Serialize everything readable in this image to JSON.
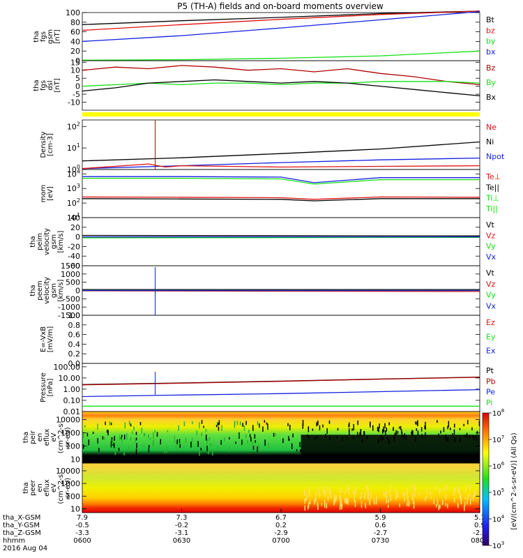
{
  "title": "P5 (TH-A) fields and on-board moments overview",
  "colors": {
    "black": "#000000",
    "red": "#e01010",
    "green": "#10e010",
    "blue": "#1020e0",
    "darkred": "#b00000",
    "yellow": "#ffff00"
  },
  "chart_data": [
    {
      "type": "line",
      "id": "fgs_mag",
      "ylabel": [
        "tha",
        "fgs",
        "gsm",
        "[nT]"
      ],
      "ylim": [
        0,
        100
      ],
      "yticks": [
        0,
        20,
        40,
        60,
        80,
        100
      ],
      "legend": [
        {
          "name": "Bt",
          "color": "black"
        },
        {
          "name": "bz",
          "color": "red"
        },
        {
          "name": "by",
          "color": "green"
        },
        {
          "name": "bx",
          "color": "blue"
        }
      ],
      "series": [
        {
          "name": "Bt",
          "color": "black",
          "x": [
            0,
            30,
            60,
            90,
            120
          ],
          "y": [
            75,
            83,
            90,
            98,
            103
          ]
        },
        {
          "name": "bz",
          "color": "red",
          "x": [
            0,
            30,
            60,
            90,
            120
          ],
          "y": [
            63,
            75,
            86,
            96,
            103
          ]
        },
        {
          "name": "by",
          "color": "green",
          "x": [
            0,
            30,
            60,
            90,
            120
          ],
          "y": [
            1,
            2,
            5,
            10,
            20
          ]
        },
        {
          "name": "bx",
          "color": "blue",
          "x": [
            0,
            30,
            60,
            90,
            120
          ],
          "y": [
            40,
            52,
            68,
            85,
            102
          ]
        }
      ]
    },
    {
      "type": "line",
      "id": "fgs_comp",
      "ylabel": [
        "tha",
        "fgs",
        "dsl",
        "[nT]"
      ],
      "ylim": [
        -15,
        16
      ],
      "yticks": [
        -10,
        -5,
        0,
        5,
        10,
        15
      ],
      "legend": [
        {
          "name": "Bz",
          "color": "darkred"
        },
        {
          "name": "By",
          "color": "green"
        },
        {
          "name": "Bx",
          "color": "black"
        }
      ],
      "series": [
        {
          "name": "Bz",
          "color": "darkred",
          "x": [
            0,
            10,
            20,
            30,
            40,
            50,
            60,
            70,
            80,
            90,
            100,
            110,
            120
          ],
          "y": [
            10,
            12,
            11,
            13,
            12,
            10,
            11,
            9,
            11,
            8,
            6,
            3,
            1
          ]
        },
        {
          "name": "By",
          "color": "green",
          "x": [
            0,
            10,
            20,
            30,
            40,
            50,
            60,
            70,
            80,
            90,
            100,
            110,
            120
          ],
          "y": [
            0,
            1,
            2,
            1,
            2,
            2,
            1,
            2,
            2,
            3,
            3,
            3,
            2
          ]
        },
        {
          "name": "Bx",
          "color": "black",
          "x": [
            0,
            10,
            20,
            30,
            40,
            50,
            60,
            70,
            80,
            90,
            100,
            110,
            120
          ],
          "y": [
            -3,
            -1,
            2,
            3,
            4,
            3,
            2,
            3,
            2,
            0,
            -2,
            -4,
            -6
          ]
        }
      ]
    },
    {
      "type": "line",
      "id": "density",
      "ylabel": [
        "Density",
        "[cm-3]"
      ],
      "scale": "log",
      "ylim": [
        1,
        200
      ],
      "yticks": [
        1,
        10,
        100
      ],
      "legend": [
        {
          "name": "Ne",
          "color": "red"
        },
        {
          "name": "Ni",
          "color": "black"
        },
        {
          "name": "Npot",
          "color": "blue"
        }
      ],
      "series": [
        {
          "name": "Ni",
          "color": "black",
          "x": [
            0,
            30,
            60,
            90,
            120
          ],
          "y": [
            2.5,
            3.5,
            5.5,
            9,
            19
          ]
        },
        {
          "name": "Npot",
          "color": "blue",
          "x": [
            0,
            30,
            60,
            90,
            120
          ],
          "y": [
            1.1,
            1.5,
            2.1,
            2.8,
            3.4
          ]
        },
        {
          "name": "Ne",
          "color": "red",
          "x": [
            0,
            20,
            25,
            30,
            60,
            90,
            120
          ],
          "y": [
            1.1,
            1.8,
            1.3,
            1.5,
            1.3,
            1.4,
            1.5
          ]
        }
      ]
    },
    {
      "type": "line",
      "id": "temperature",
      "ylabel": [
        "mom",
        "[eV]"
      ],
      "scale": "log",
      "ylim": [
        10,
        20000
      ],
      "yticks": [
        10,
        100,
        1000,
        10000
      ],
      "legend": [
        {
          "name": "Te⊥",
          "color": "red"
        },
        {
          "name": "Te||",
          "color": "black"
        },
        {
          "name": "Ti⊥",
          "color": "green"
        },
        {
          "name": "Ti||",
          "color": "green"
        }
      ],
      "series": [
        {
          "name": "Ti⊥",
          "color": "blue",
          "x": [
            0,
            30,
            60,
            70,
            90,
            120
          ],
          "y": [
            6500,
            6500,
            6000,
            2500,
            5500,
            5500
          ]
        },
        {
          "name": "Ti||",
          "color": "green",
          "x": [
            0,
            30,
            60,
            70,
            90,
            120
          ],
          "y": [
            5000,
            5000,
            4500,
            2000,
            4000,
            4000
          ]
        },
        {
          "name": "Te⊥",
          "color": "red",
          "x": [
            0,
            30,
            60,
            70,
            90,
            120
          ],
          "y": [
            260,
            250,
            230,
            180,
            260,
            250
          ]
        },
        {
          "name": "Te||",
          "color": "black",
          "x": [
            0,
            30,
            60,
            70,
            90,
            120
          ],
          "y": [
            200,
            190,
            180,
            140,
            200,
            200
          ]
        }
      ]
    },
    {
      "type": "line",
      "id": "peim_vel",
      "ylabel": [
        "tha",
        "peim",
        "velocity",
        "gsm",
        "[km/s]"
      ],
      "ylim": [
        -60,
        40
      ],
      "yticks": [
        -60,
        -40,
        -20,
        0,
        20,
        40
      ],
      "legend": [
        {
          "name": "Vt",
          "color": "black"
        },
        {
          "name": "Vz",
          "color": "red"
        },
        {
          "name": "Vy",
          "color": "green"
        },
        {
          "name": "Vx",
          "color": "blue"
        }
      ],
      "series": [
        {
          "name": "Vt",
          "color": "black",
          "x": [
            0,
            120
          ],
          "y": [
            3,
            2
          ]
        },
        {
          "name": "Vz",
          "color": "red",
          "x": [
            0,
            120
          ],
          "y": [
            0,
            0
          ]
        },
        {
          "name": "Vy",
          "color": "green",
          "x": [
            0,
            120
          ],
          "y": [
            -2,
            -1
          ]
        },
        {
          "name": "Vx",
          "color": "blue",
          "x": [
            0,
            120
          ],
          "y": [
            0,
            0
          ]
        }
      ]
    },
    {
      "type": "line",
      "id": "peem_vel",
      "ylabel": [
        "tha",
        "peem",
        "velocity",
        "gsm",
        "[km/s]"
      ],
      "ylim": [
        -1500,
        1500
      ],
      "yticks": [
        -1500,
        -1000,
        -500,
        0,
        500,
        1000,
        1500
      ],
      "legend": [
        {
          "name": "Vt",
          "color": "black"
        },
        {
          "name": "Vz",
          "color": "red"
        },
        {
          "name": "Vy",
          "color": "green"
        },
        {
          "name": "Vx",
          "color": "blue"
        }
      ],
      "series": [
        {
          "name": "Vt",
          "color": "black",
          "x": [
            0,
            120
          ],
          "y": [
            60,
            60
          ]
        },
        {
          "name": "Vz",
          "color": "red",
          "x": [
            0,
            120
          ],
          "y": [
            -20,
            -60
          ]
        },
        {
          "name": "Vy",
          "color": "green",
          "x": [
            0,
            120
          ],
          "y": [
            0,
            0
          ]
        },
        {
          "name": "Vx",
          "color": "blue",
          "x": [
            0,
            120
          ],
          "y": [
            0,
            0
          ]
        }
      ]
    },
    {
      "type": "line",
      "id": "efield",
      "ylabel": [
        "E=-VxB",
        "[mV/m]"
      ],
      "ylim": [
        0,
        1
      ],
      "yticks": [
        0.0,
        0.2,
        0.4,
        0.6,
        0.8,
        1.0
      ],
      "legend": [
        {
          "name": "Ez",
          "color": "red"
        },
        {
          "name": "Ey",
          "color": "green"
        },
        {
          "name": "Ex",
          "color": "blue"
        }
      ],
      "series": []
    },
    {
      "type": "line",
      "id": "pressure",
      "ylabel": [
        "Pressure",
        "[nPa]"
      ],
      "scale": "log",
      "ylim": [
        0.01,
        200
      ],
      "yticks": [
        0.01,
        0.1,
        1.0,
        10.0,
        100.0
      ],
      "ytick_labels": [
        "0.01",
        "0.10",
        "1.00",
        "10.00",
        "100.00"
      ],
      "legend": [
        {
          "name": "Pt",
          "color": "black"
        },
        {
          "name": "Pb",
          "color": "darkred"
        },
        {
          "name": "Pe",
          "color": "blue"
        },
        {
          "name": "Pi",
          "color": "green"
        }
      ],
      "series": [
        {
          "name": "Pt",
          "color": "black",
          "x": [
            0,
            30,
            60,
            90,
            120
          ],
          "y": [
            2.6,
            3.6,
            5.2,
            8,
            12
          ]
        },
        {
          "name": "Pb",
          "color": "darkred",
          "x": [
            0,
            30,
            60,
            90,
            120
          ],
          "y": [
            2.4,
            3.4,
            5,
            7.8,
            11.5
          ]
        },
        {
          "name": "Pe",
          "color": "blue",
          "x": [
            0,
            30,
            60,
            90,
            120
          ],
          "y": [
            0.22,
            0.3,
            0.4,
            0.6,
            0.9
          ]
        },
        {
          "name": "Pi",
          "color": "green",
          "x": [
            0,
            120
          ],
          "y": [
            0.03,
            0.03
          ]
        }
      ]
    },
    {
      "type": "heatmap",
      "id": "peir",
      "ylabel": [
        "tha",
        "peir",
        "en",
        "eflux",
        "eV",
        "(cm^2-s-",
        "sr-eV)"
      ],
      "scale": "log",
      "ylim": [
        5,
        40000
      ],
      "yticks": [
        10,
        100,
        1000,
        10000
      ],
      "ytick_labels": [
        "10",
        "100",
        "1000",
        "10000"
      ]
    },
    {
      "type": "heatmap",
      "id": "peer",
      "ylabel": [
        "tha",
        "peer",
        "en",
        "eflux",
        "eV",
        "(cm^2-s-",
        "sr-eV)"
      ],
      "scale": "log",
      "ylim": [
        5,
        40000
      ],
      "yticks": [
        10,
        100,
        1000,
        10000
      ],
      "ytick_labels": [
        "10",
        "100",
        "1000",
        "10000"
      ]
    }
  ],
  "colorbar": {
    "label": "[eV/(cm^2-s-sr-eV)] (All Qs)",
    "ticks": [
      "10^3",
      "10^4",
      "10^5",
      "10^6",
      "10^7",
      "10^8"
    ]
  },
  "xaxis": {
    "rows": [
      {
        "label": "tha_X-GSM",
        "values": [
          "7.9",
          "7.3",
          "6.7",
          "5.9",
          "5.1"
        ]
      },
      {
        "label": "tha_Y-GSM",
        "values": [
          "-0.5",
          "-0.2",
          "0.2",
          "0.6",
          "0.9"
        ]
      },
      {
        "label": "tha_Z-GSM",
        "values": [
          "-3.3",
          "-3.1",
          "-2.9",
          "-2.7",
          "-2.5"
        ]
      },
      {
        "label": "hhmm",
        "values": [
          "0600",
          "0630",
          "0700",
          "0730",
          "0800"
        ]
      }
    ],
    "date": "2016 Aug 04"
  }
}
